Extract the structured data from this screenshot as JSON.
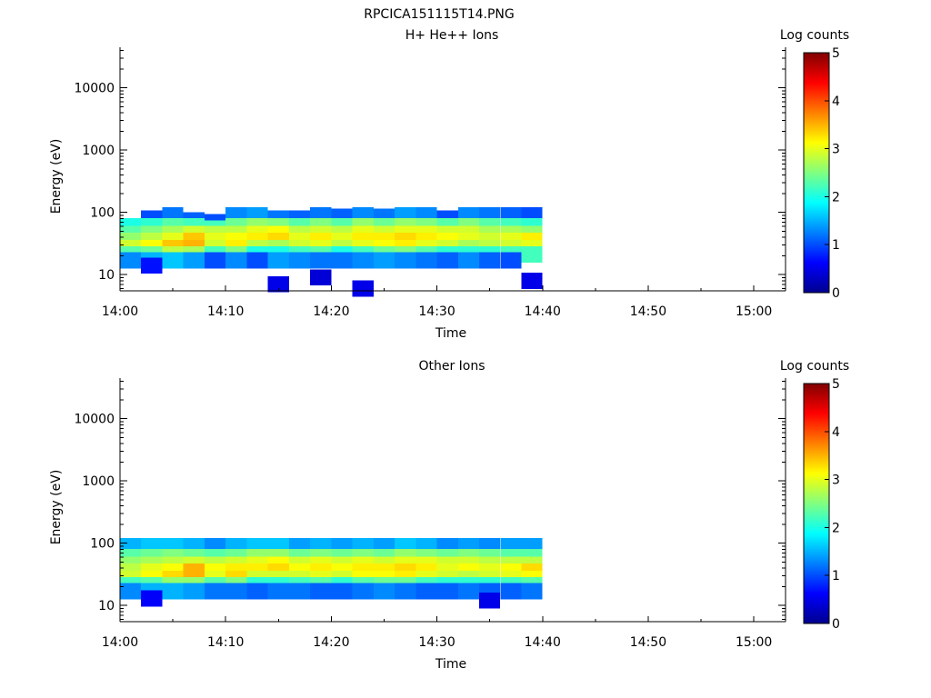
{
  "figure_title": "RPCICA151115T14.PNG",
  "chart_data": [
    {
      "type": "heatmap",
      "title": "H+ He++ Ions",
      "xlabel": "Time",
      "ylabel": "Energy (eV)",
      "x_ticks": [
        "14:00",
        "14:10",
        "14:20",
        "14:30",
        "14:40",
        "14:50",
        "15:00"
      ],
      "y_ticks": [
        "10",
        "100",
        "1000",
        "10000"
      ],
      "y_scale": "log",
      "ylim": [
        5.5,
        45000
      ],
      "xlim_minutes": [
        0,
        63
      ],
      "data_end_minutes": 40,
      "colorbar": {
        "label": "Log counts",
        "range": [
          0,
          5
        ],
        "ticks": [
          "0",
          "1",
          "2",
          "3",
          "4",
          "5"
        ]
      },
      "colors": {
        "colormap": [
          "#00008f",
          "#0000ff",
          "#0080ff",
          "#00ffff",
          "#80ff80",
          "#ffff00",
          "#ff8000",
          "#ff0000",
          "#800000"
        ]
      },
      "cells": [
        [
          0,
          60,
          2.0
        ],
        [
          0,
          45,
          2.3
        ],
        [
          0,
          35,
          2.6
        ],
        [
          0,
          27,
          2.9
        ],
        [
          0,
          21,
          2.3
        ],
        [
          0,
          17,
          1.3
        ],
        [
          2,
          80,
          1.0
        ],
        [
          2,
          60,
          2.1
        ],
        [
          2,
          45,
          2.5
        ],
        [
          2,
          35,
          2.8
        ],
        [
          2,
          27,
          3.1
        ],
        [
          2,
          21,
          2.4
        ],
        [
          2,
          17,
          1.5
        ],
        [
          2,
          14,
          0.7
        ],
        [
          4,
          90,
          1.2
        ],
        [
          4,
          60,
          2.3
        ],
        [
          4,
          45,
          2.7
        ],
        [
          4,
          35,
          3.0
        ],
        [
          4,
          27,
          3.4
        ],
        [
          4,
          21,
          2.8
        ],
        [
          4,
          17,
          1.6
        ],
        [
          6,
          75,
          1.1
        ],
        [
          6,
          60,
          2.2
        ],
        [
          6,
          45,
          2.9
        ],
        [
          6,
          35,
          3.4
        ],
        [
          6,
          27,
          3.5
        ],
        [
          6,
          21,
          2.7
        ],
        [
          6,
          17,
          1.4
        ],
        [
          8,
          70,
          1.0
        ],
        [
          8,
          55,
          2.2
        ],
        [
          8,
          45,
          2.8
        ],
        [
          8,
          35,
          3.0
        ],
        [
          8,
          27,
          2.9
        ],
        [
          8,
          21,
          2.2
        ],
        [
          8,
          17,
          1.0
        ],
        [
          10,
          90,
          1.3
        ],
        [
          10,
          60,
          2.4
        ],
        [
          10,
          45,
          2.8
        ],
        [
          10,
          35,
          3.1
        ],
        [
          10,
          27,
          3.2
        ],
        [
          10,
          21,
          2.5
        ],
        [
          10,
          17,
          1.3
        ],
        [
          12,
          90,
          1.4
        ],
        [
          12,
          60,
          2.6
        ],
        [
          12,
          45,
          3.0
        ],
        [
          12,
          35,
          3.2
        ],
        [
          12,
          27,
          2.8
        ],
        [
          12,
          21,
          2.0
        ],
        [
          12,
          17,
          1.0
        ],
        [
          14,
          80,
          1.2
        ],
        [
          14,
          60,
          2.5
        ],
        [
          14,
          45,
          3.1
        ],
        [
          14,
          35,
          3.3
        ],
        [
          14,
          27,
          2.7
        ],
        [
          14,
          21,
          2.0
        ],
        [
          14,
          17,
          1.4
        ],
        [
          14,
          7,
          0.5
        ],
        [
          16,
          80,
          1.1
        ],
        [
          16,
          60,
          2.3
        ],
        [
          16,
          45,
          2.8
        ],
        [
          16,
          35,
          3.0
        ],
        [
          16,
          27,
          2.9
        ],
        [
          16,
          21,
          2.2
        ],
        [
          16,
          17,
          1.3
        ],
        [
          18,
          90,
          1.2
        ],
        [
          18,
          60,
          2.5
        ],
        [
          18,
          45,
          2.9
        ],
        [
          18,
          35,
          3.2
        ],
        [
          18,
          27,
          3.0
        ],
        [
          18,
          21,
          2.3
        ],
        [
          18,
          17,
          1.2
        ],
        [
          18,
          9,
          0.4
        ],
        [
          20,
          85,
          1.1
        ],
        [
          20,
          60,
          2.3
        ],
        [
          20,
          45,
          2.8
        ],
        [
          20,
          35,
          3.0
        ],
        [
          20,
          27,
          2.8
        ],
        [
          20,
          21,
          2.0
        ],
        [
          20,
          17,
          1.2
        ],
        [
          22,
          90,
          1.3
        ],
        [
          22,
          60,
          2.6
        ],
        [
          22,
          45,
          3.0
        ],
        [
          22,
          35,
          3.2
        ],
        [
          22,
          27,
          3.0
        ],
        [
          22,
          21,
          2.2
        ],
        [
          22,
          17,
          1.3
        ],
        [
          22,
          6,
          0.5
        ],
        [
          24,
          85,
          1.2
        ],
        [
          24,
          60,
          2.4
        ],
        [
          24,
          45,
          2.9
        ],
        [
          24,
          35,
          3.2
        ],
        [
          24,
          27,
          3.1
        ],
        [
          24,
          21,
          2.4
        ],
        [
          24,
          17,
          1.4
        ],
        [
          26,
          90,
          1.4
        ],
        [
          26,
          60,
          2.6
        ],
        [
          26,
          45,
          3.0
        ],
        [
          26,
          35,
          3.3
        ],
        [
          26,
          27,
          3.2
        ],
        [
          26,
          21,
          2.5
        ],
        [
          26,
          17,
          1.3
        ],
        [
          28,
          90,
          1.3
        ],
        [
          28,
          60,
          2.5
        ],
        [
          28,
          45,
          3.0
        ],
        [
          28,
          35,
          3.2
        ],
        [
          28,
          27,
          3.0
        ],
        [
          28,
          21,
          2.3
        ],
        [
          28,
          17,
          1.2
        ],
        [
          30,
          80,
          1.0
        ],
        [
          30,
          60,
          2.3
        ],
        [
          30,
          45,
          2.9
        ],
        [
          30,
          35,
          3.1
        ],
        [
          30,
          27,
          2.9
        ],
        [
          30,
          21,
          2.1
        ],
        [
          30,
          17,
          1.1
        ],
        [
          32,
          90,
          1.3
        ],
        [
          32,
          60,
          2.5
        ],
        [
          32,
          45,
          2.9
        ],
        [
          32,
          35,
          3.0
        ],
        [
          32,
          27,
          2.7
        ],
        [
          32,
          21,
          2.1
        ],
        [
          32,
          17,
          1.3
        ],
        [
          34,
          90,
          1.2
        ],
        [
          34,
          60,
          2.3
        ],
        [
          34,
          45,
          2.7
        ],
        [
          34,
          35,
          2.9
        ],
        [
          34,
          27,
          2.8
        ],
        [
          34,
          21,
          2.1
        ],
        [
          34,
          17,
          1.1
        ],
        [
          36,
          90,
          1.1
        ],
        [
          36,
          60,
          2.2
        ],
        [
          36,
          45,
          2.7
        ],
        [
          36,
          35,
          3.0
        ],
        [
          36,
          27,
          2.9
        ],
        [
          36,
          21,
          2.2
        ],
        [
          36,
          17,
          1.0
        ],
        [
          38,
          90,
          1.0
        ],
        [
          38,
          60,
          2.1
        ],
        [
          38,
          45,
          2.6
        ],
        [
          38,
          35,
          3.2
        ],
        [
          38,
          27,
          3.0
        ],
        [
          38,
          21,
          2.2
        ],
        [
          38,
          8,
          0.5
        ]
      ]
    },
    {
      "type": "heatmap",
      "title": "Other Ions",
      "xlabel": "Time",
      "ylabel": "Energy (eV)",
      "x_ticks": [
        "14:00",
        "14:10",
        "14:20",
        "14:30",
        "14:40",
        "14:50",
        "15:00"
      ],
      "y_ticks": [
        "10",
        "100",
        "1000",
        "10000"
      ],
      "y_scale": "log",
      "ylim": [
        5.5,
        45000
      ],
      "xlim_minutes": [
        0,
        63
      ],
      "data_end_minutes": 40,
      "colorbar": {
        "label": "Log counts",
        "range": [
          0,
          5
        ],
        "ticks": [
          "0",
          "1",
          "2",
          "3",
          "4",
          "5"
        ]
      },
      "colors": {
        "colormap": [
          "#00008f",
          "#0000ff",
          "#0080ff",
          "#00ffff",
          "#80ff80",
          "#ffff00",
          "#ff8000",
          "#ff0000",
          "#800000"
        ]
      },
      "cells": [
        [
          0,
          90,
          1.5
        ],
        [
          0,
          60,
          2.3
        ],
        [
          0,
          45,
          2.6
        ],
        [
          0,
          35,
          2.8
        ],
        [
          0,
          27,
          2.9
        ],
        [
          0,
          21,
          2.2
        ],
        [
          0,
          17,
          1.3
        ],
        [
          2,
          90,
          1.6
        ],
        [
          2,
          60,
          2.4
        ],
        [
          2,
          45,
          2.7
        ],
        [
          2,
          35,
          3.0
        ],
        [
          2,
          27,
          3.1
        ],
        [
          2,
          21,
          2.3
        ],
        [
          2,
          17,
          1.5
        ],
        [
          2,
          13,
          0.6
        ],
        [
          4,
          90,
          1.6
        ],
        [
          4,
          60,
          2.5
        ],
        [
          4,
          45,
          2.8
        ],
        [
          4,
          35,
          3.1
        ],
        [
          4,
          27,
          3.3
        ],
        [
          4,
          21,
          2.6
        ],
        [
          4,
          17,
          1.5
        ],
        [
          6,
          90,
          1.5
        ],
        [
          6,
          60,
          2.4
        ],
        [
          6,
          45,
          2.9
        ],
        [
          6,
          35,
          3.5
        ],
        [
          6,
          27,
          3.5
        ],
        [
          6,
          21,
          2.6
        ],
        [
          6,
          17,
          1.4
        ],
        [
          8,
          90,
          1.3
        ],
        [
          8,
          60,
          2.3
        ],
        [
          8,
          45,
          2.8
        ],
        [
          8,
          35,
          3.1
        ],
        [
          8,
          27,
          3.0
        ],
        [
          8,
          21,
          2.3
        ],
        [
          8,
          17,
          1.2
        ],
        [
          10,
          90,
          1.5
        ],
        [
          10,
          60,
          2.4
        ],
        [
          10,
          45,
          2.9
        ],
        [
          10,
          35,
          3.2
        ],
        [
          10,
          27,
          3.3
        ],
        [
          10,
          21,
          2.5
        ],
        [
          10,
          17,
          1.2
        ],
        [
          12,
          90,
          1.6
        ],
        [
          12,
          60,
          2.6
        ],
        [
          12,
          45,
          3.0
        ],
        [
          12,
          35,
          3.2
        ],
        [
          12,
          27,
          2.9
        ],
        [
          12,
          21,
          2.1
        ],
        [
          12,
          17,
          1.1
        ],
        [
          14,
          90,
          1.6
        ],
        [
          14,
          60,
          2.6
        ],
        [
          14,
          45,
          3.1
        ],
        [
          14,
          35,
          3.3
        ],
        [
          14,
          27,
          2.9
        ],
        [
          14,
          21,
          2.1
        ],
        [
          14,
          17,
          1.2
        ],
        [
          16,
          90,
          1.4
        ],
        [
          16,
          60,
          2.4
        ],
        [
          16,
          45,
          2.9
        ],
        [
          16,
          35,
          3.1
        ],
        [
          16,
          27,
          2.9
        ],
        [
          16,
          21,
          2.2
        ],
        [
          16,
          17,
          1.2
        ],
        [
          18,
          90,
          1.5
        ],
        [
          18,
          60,
          2.5
        ],
        [
          18,
          45,
          3.0
        ],
        [
          18,
          35,
          3.2
        ],
        [
          18,
          27,
          3.0
        ],
        [
          18,
          21,
          2.3
        ],
        [
          18,
          17,
          1.1
        ],
        [
          20,
          90,
          1.4
        ],
        [
          20,
          60,
          2.4
        ],
        [
          20,
          45,
          2.9
        ],
        [
          20,
          35,
          3.1
        ],
        [
          20,
          27,
          2.9
        ],
        [
          20,
          21,
          2.1
        ],
        [
          20,
          17,
          1.1
        ],
        [
          22,
          90,
          1.5
        ],
        [
          22,
          60,
          2.5
        ],
        [
          22,
          45,
          3.0
        ],
        [
          22,
          35,
          3.2
        ],
        [
          22,
          27,
          3.1
        ],
        [
          22,
          21,
          2.3
        ],
        [
          22,
          17,
          1.2
        ],
        [
          24,
          90,
          1.4
        ],
        [
          24,
          60,
          2.4
        ],
        [
          24,
          45,
          2.9
        ],
        [
          24,
          35,
          3.2
        ],
        [
          24,
          27,
          3.1
        ],
        [
          24,
          21,
          2.4
        ],
        [
          24,
          17,
          1.3
        ],
        [
          26,
          90,
          1.6
        ],
        [
          26,
          60,
          2.6
        ],
        [
          26,
          45,
          3.0
        ],
        [
          26,
          35,
          3.3
        ],
        [
          26,
          27,
          3.2
        ],
        [
          26,
          21,
          2.4
        ],
        [
          26,
          17,
          1.2
        ],
        [
          28,
          90,
          1.5
        ],
        [
          28,
          60,
          2.5
        ],
        [
          28,
          45,
          3.0
        ],
        [
          28,
          35,
          3.2
        ],
        [
          28,
          27,
          3.0
        ],
        [
          28,
          21,
          2.2
        ],
        [
          28,
          17,
          1.1
        ],
        [
          30,
          90,
          1.3
        ],
        [
          30,
          60,
          2.4
        ],
        [
          30,
          45,
          2.9
        ],
        [
          30,
          35,
          3.0
        ],
        [
          30,
          27,
          2.9
        ],
        [
          30,
          21,
          2.1
        ],
        [
          30,
          17,
          1.1
        ],
        [
          32,
          90,
          1.4
        ],
        [
          32,
          60,
          2.5
        ],
        [
          32,
          45,
          2.9
        ],
        [
          32,
          35,
          3.1
        ],
        [
          32,
          27,
          2.8
        ],
        [
          32,
          21,
          2.1
        ],
        [
          32,
          17,
          1.2
        ],
        [
          34,
          90,
          1.3
        ],
        [
          34,
          60,
          2.4
        ],
        [
          34,
          45,
          2.8
        ],
        [
          34,
          35,
          3.0
        ],
        [
          34,
          27,
          2.9
        ],
        [
          34,
          21,
          2.1
        ],
        [
          34,
          17,
          1.1
        ],
        [
          34,
          12,
          0.5
        ],
        [
          36,
          90,
          1.4
        ],
        [
          36,
          60,
          2.3
        ],
        [
          36,
          45,
          2.8
        ],
        [
          36,
          35,
          3.1
        ],
        [
          36,
          27,
          3.0
        ],
        [
          36,
          21,
          2.2
        ],
        [
          36,
          17,
          1.1
        ],
        [
          38,
          90,
          1.4
        ],
        [
          38,
          60,
          2.3
        ],
        [
          38,
          45,
          2.8
        ],
        [
          38,
          35,
          3.3
        ],
        [
          38,
          27,
          3.1
        ],
        [
          38,
          21,
          2.3
        ],
        [
          38,
          17,
          1.2
        ]
      ]
    }
  ]
}
